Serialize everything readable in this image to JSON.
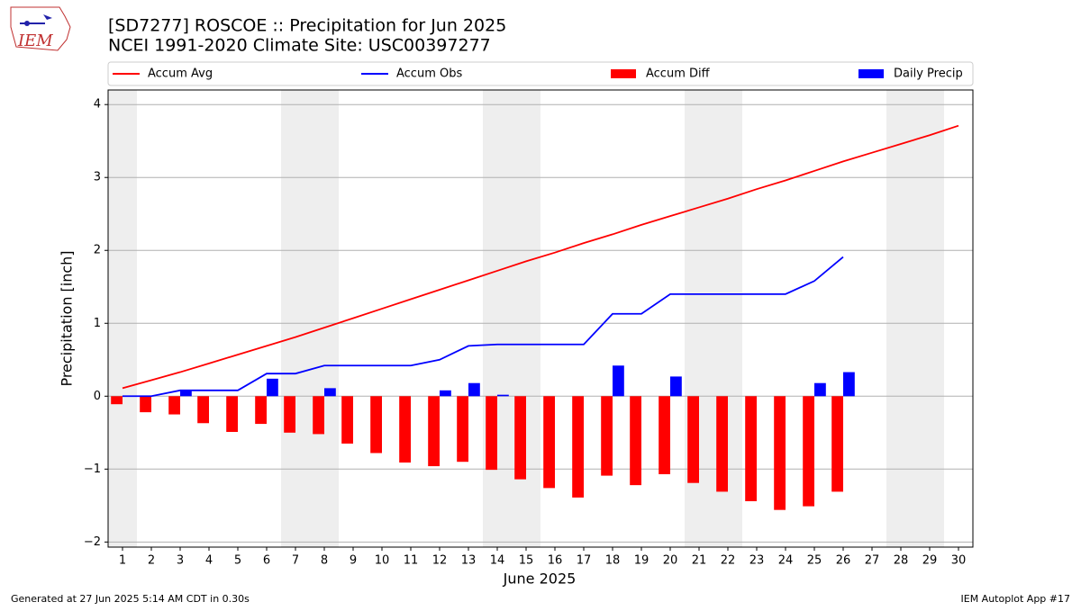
{
  "logo_text": "IEM",
  "footer_left": "Generated at 27 Jun 2025 5:14 AM CDT in 0.30s",
  "footer_right": "IEM Autoplot App #17",
  "chart_data": {
    "type": "bar-line",
    "title": "[SD7277] ROSCOE :: Precipitation for Jun 2025",
    "subtitle": "NCEI 1991-2020 Climate Site: USC00397277",
    "xlabel": "June 2025",
    "ylabel": "Precipitation [inch]",
    "x": [
      1,
      2,
      3,
      4,
      5,
      6,
      7,
      8,
      9,
      10,
      11,
      12,
      13,
      14,
      15,
      16,
      17,
      18,
      19,
      20,
      21,
      22,
      23,
      24,
      25,
      26,
      27,
      28,
      29,
      30
    ],
    "xlim": [
      0.5,
      30.5
    ],
    "xticks": [
      1,
      2,
      3,
      4,
      5,
      6,
      7,
      8,
      9,
      10,
      11,
      12,
      13,
      14,
      15,
      16,
      17,
      18,
      19,
      20,
      21,
      22,
      23,
      24,
      25,
      26,
      27,
      28,
      29,
      30
    ],
    "ylim": [
      -2.07,
      4.2
    ],
    "yticks": [
      {
        "value": -2,
        "label": "−2"
      },
      {
        "value": -1,
        "label": "−1"
      },
      0,
      1,
      2,
      3,
      4
    ],
    "grid": true,
    "weekend_shading": [
      [
        0.5,
        1.5
      ],
      [
        6.5,
        8.5
      ],
      [
        13.5,
        15.5
      ],
      [
        20.5,
        22.5
      ],
      [
        27.5,
        29.5
      ]
    ],
    "series": [
      {
        "name": "Accum Avg",
        "kind": "line",
        "color": "#ff0000",
        "values": [
          0.11,
          0.22,
          0.33,
          0.45,
          0.57,
          0.69,
          0.81,
          0.94,
          1.07,
          1.2,
          1.33,
          1.46,
          1.59,
          1.72,
          1.85,
          1.97,
          2.1,
          2.22,
          2.35,
          2.47,
          2.59,
          2.71,
          2.84,
          2.96,
          3.09,
          3.22,
          3.34,
          3.46,
          3.58,
          3.71
        ]
      },
      {
        "name": "Accum Obs",
        "kind": "line",
        "color": "#0000ff",
        "values": [
          0,
          0,
          0.08,
          0.08,
          0.08,
          0.31,
          0.31,
          0.42,
          0.42,
          0.42,
          0.42,
          0.5,
          0.69,
          0.71,
          0.71,
          0.71,
          0.71,
          1.13,
          1.13,
          1.4,
          1.4,
          1.4,
          1.4,
          1.4,
          1.58,
          1.91,
          null,
          null,
          null,
          null
        ]
      },
      {
        "name": "Accum Diff",
        "kind": "bar",
        "color": "#ff0000",
        "values": [
          -0.11,
          -0.22,
          -0.25,
          -0.37,
          -0.49,
          -0.38,
          -0.5,
          -0.52,
          -0.65,
          -0.78,
          -0.91,
          -0.96,
          -0.9,
          -1.01,
          -1.14,
          -1.26,
          -1.39,
          -1.09,
          -1.22,
          -1.07,
          -1.19,
          -1.31,
          -1.44,
          -1.56,
          -1.51,
          -1.31,
          null,
          null,
          null,
          null
        ]
      },
      {
        "name": "Daily Precip",
        "kind": "bar",
        "color": "#0000ff",
        "values": [
          0,
          0,
          0.08,
          0,
          0,
          0.24,
          0,
          0.11,
          0,
          0,
          0,
          0.08,
          0.18,
          0.02,
          0,
          0,
          0,
          0.42,
          0,
          0.27,
          0,
          0,
          0,
          0,
          0.18,
          0.33,
          null,
          null,
          null,
          null
        ]
      }
    ]
  }
}
